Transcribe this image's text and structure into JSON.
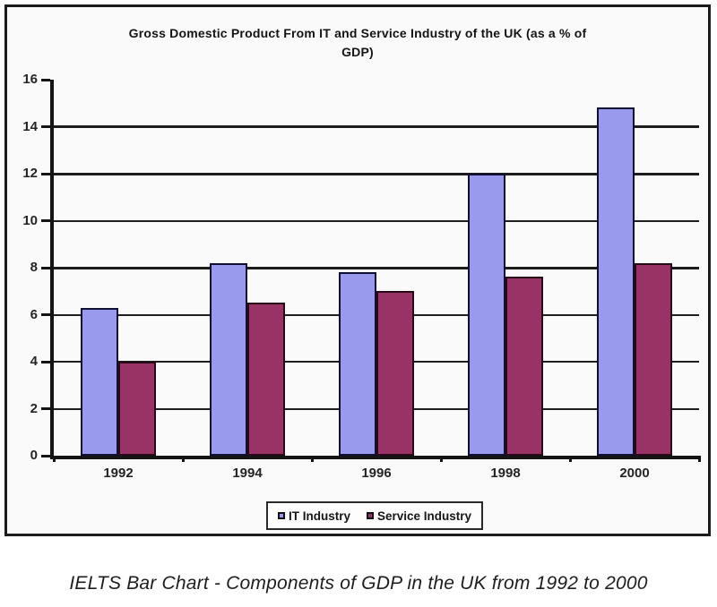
{
  "chart_data": {
    "type": "bar",
    "title": "Gross Domestic Product From IT and Service Industry of the UK (as a % of GDP)",
    "title_lines": [
      "Gross Domestic Product From IT and Service Industry of the UK (as a % of",
      "GDP)"
    ],
    "categories": [
      "1992",
      "1994",
      "1996",
      "1998",
      "2000"
    ],
    "series": [
      {
        "name": "IT Industry",
        "color": "#9999ee",
        "values": [
          6.3,
          8.2,
          7.8,
          12,
          14.8
        ]
      },
      {
        "name": "Service Industry",
        "color": "#993366",
        "values": [
          4,
          6.5,
          7,
          7.6,
          8.2
        ]
      }
    ],
    "xlabel": "",
    "ylabel": "",
    "ylim": [
      0,
      16
    ],
    "yticks": [
      0,
      2,
      4,
      6,
      8,
      10,
      12,
      14,
      16
    ],
    "gridline_values": [
      2,
      4,
      6,
      8,
      10,
      12,
      14
    ],
    "major_gridlines": [
      8,
      12,
      14
    ],
    "grid": true,
    "legend_position": "bottom-inside"
  },
  "caption": {
    "text": "IELTS Bar Chart - Components of GDP in the UK from 1992 to 2000"
  }
}
